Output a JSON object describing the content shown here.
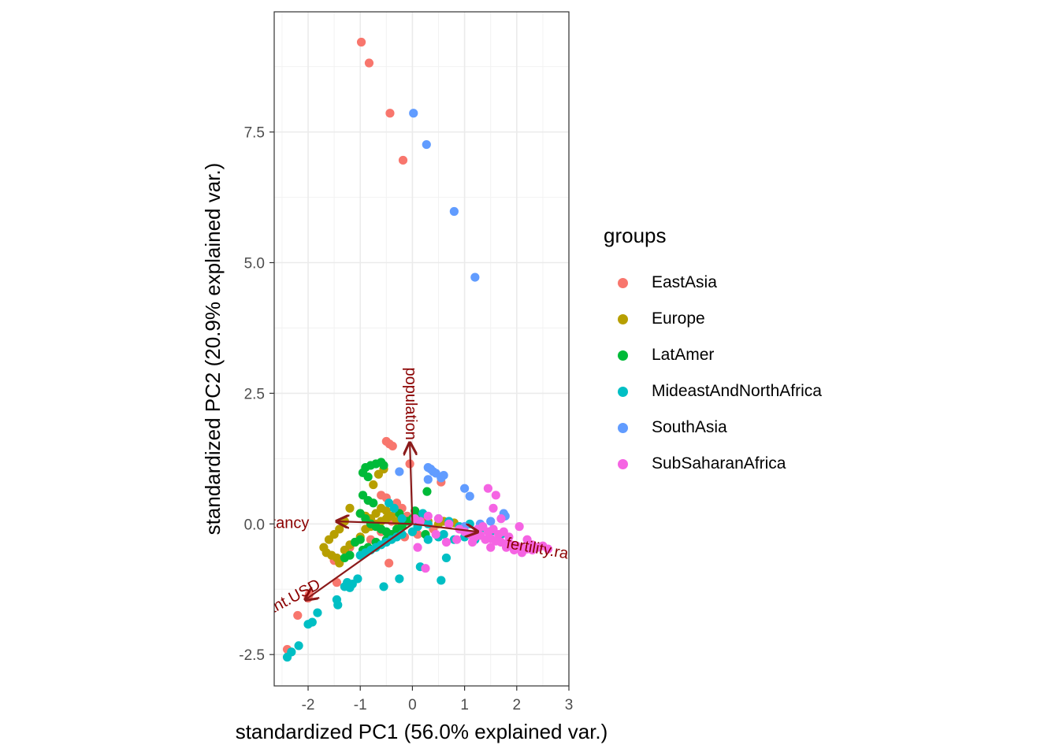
{
  "chart_data": {
    "type": "scatter",
    "title": "",
    "xlabel": "standardized PC1 (56.0% explained var.)",
    "ylabel": "standardized PC2 (20.9% explained var.)",
    "xlim": [
      -2.65,
      3.0
    ],
    "ylim": [
      -3.1,
      9.8
    ],
    "x_ticks": [
      -2,
      -1,
      0,
      1,
      2,
      3
    ],
    "x_tick_labels": [
      "-2",
      "-1",
      "0",
      "1",
      "2",
      "3"
    ],
    "y_ticks": [
      -2.5,
      0.0,
      2.5,
      5.0,
      7.5
    ],
    "y_tick_labels": [
      "-2.5",
      "0.0",
      "2.5",
      "5.0",
      "7.5"
    ],
    "grid": true,
    "legend_title": "groups",
    "legend_position": "right",
    "series": [
      {
        "name": "EastAsia",
        "color": "#F8766D",
        "points": [
          [
            -0.98,
            9.22
          ],
          [
            -0.83,
            8.82
          ],
          [
            -0.43,
            7.86
          ],
          [
            -0.18,
            6.96
          ],
          [
            -0.5,
            1.58
          ],
          [
            -0.44,
            1.53
          ],
          [
            -0.38,
            1.49
          ],
          [
            -0.05,
            1.15
          ],
          [
            -0.6,
            0.55
          ],
          [
            -0.5,
            0.5
          ],
          [
            -0.3,
            0.4
          ],
          [
            -0.2,
            0.3
          ],
          [
            -0.1,
            0.15
          ],
          [
            -0.4,
            0.05
          ],
          [
            -0.6,
            -0.15
          ],
          [
            -0.8,
            -0.3
          ],
          [
            -1.2,
            -0.45
          ],
          [
            -1.5,
            -0.7
          ],
          [
            -0.45,
            -0.75
          ],
          [
            -1.45,
            -1.12
          ],
          [
            -1.98,
            -1.35
          ],
          [
            -2.0,
            -1.42
          ],
          [
            -2.2,
            -1.75
          ],
          [
            -2.4,
            -2.4
          ],
          [
            0.55,
            0.8
          ],
          [
            0.2,
            0.1
          ],
          [
            0.4,
            -0.1
          ],
          [
            0.7,
            0.0
          ],
          [
            0.1,
            -0.2
          ],
          [
            -0.15,
            -0.25
          ]
        ]
      },
      {
        "name": "Europe",
        "color": "#B79F00",
        "points": [
          [
            -0.55,
            1.05
          ],
          [
            -0.65,
            0.95
          ],
          [
            -0.75,
            0.75
          ],
          [
            -1.2,
            0.3
          ],
          [
            -1.0,
            0.2
          ],
          [
            -0.9,
            0.15
          ],
          [
            -0.8,
            0.1
          ],
          [
            -0.7,
            0.2
          ],
          [
            -0.6,
            0.3
          ],
          [
            -0.5,
            0.25
          ],
          [
            -1.3,
            0.05
          ],
          [
            -1.4,
            -0.1
          ],
          [
            -1.5,
            -0.2
          ],
          [
            -1.6,
            -0.3
          ],
          [
            -1.7,
            -0.45
          ],
          [
            -1.65,
            -0.55
          ],
          [
            -1.55,
            -0.6
          ],
          [
            -1.45,
            -0.65
          ],
          [
            -1.4,
            -0.75
          ],
          [
            -1.3,
            -0.5
          ],
          [
            -1.2,
            -0.4
          ],
          [
            -1.1,
            -0.35
          ],
          [
            -1.0,
            -0.25
          ],
          [
            -0.9,
            -0.1
          ],
          [
            -0.8,
            -0.05
          ],
          [
            -0.7,
            0.0
          ],
          [
            -0.6,
            0.05
          ],
          [
            -0.5,
            0.1
          ],
          [
            -0.4,
            0.15
          ],
          [
            -0.3,
            0.05
          ],
          [
            0.3,
            0.05
          ],
          [
            0.5,
            0.0
          ],
          [
            0.6,
            0.05
          ],
          [
            0.8,
            0.02
          ]
        ]
      },
      {
        "name": "LatAmer",
        "color": "#00BA38",
        "points": [
          [
            -0.9,
            1.08
          ],
          [
            -0.8,
            1.12
          ],
          [
            -0.7,
            1.15
          ],
          [
            -0.6,
            1.18
          ],
          [
            -0.55,
            1.12
          ],
          [
            -0.95,
            0.98
          ],
          [
            -0.85,
            0.9
          ],
          [
            -0.95,
            0.55
          ],
          [
            -0.85,
            0.45
          ],
          [
            -0.75,
            0.4
          ],
          [
            0.28,
            0.62
          ],
          [
            -1.0,
            0.2
          ],
          [
            -0.9,
            0.1
          ],
          [
            -0.8,
            0.0
          ],
          [
            -0.7,
            -0.05
          ],
          [
            -0.6,
            -0.1
          ],
          [
            -0.5,
            -0.15
          ],
          [
            -0.4,
            -0.2
          ],
          [
            -0.3,
            -0.1
          ],
          [
            -0.2,
            -0.05
          ],
          [
            -0.1,
            0.05
          ],
          [
            0.0,
            0.1
          ],
          [
            0.1,
            0.15
          ],
          [
            -1.0,
            -0.3
          ],
          [
            -1.1,
            -0.35
          ],
          [
            -0.95,
            -0.5
          ],
          [
            -0.85,
            -0.45
          ],
          [
            -1.2,
            -0.6
          ],
          [
            -1.3,
            -0.65
          ],
          [
            -0.7,
            -0.35
          ],
          [
            -0.5,
            -0.3
          ],
          [
            0.25,
            -0.2
          ],
          [
            -0.25,
            0.2
          ],
          [
            0.05,
            0.25
          ],
          [
            0.15,
            0.05
          ]
        ]
      },
      {
        "name": "MideastAndNorthAfrica",
        "color": "#00BFC4",
        "points": [
          [
            -2.4,
            -2.55
          ],
          [
            -2.32,
            -2.45
          ],
          [
            -2.18,
            -2.33
          ],
          [
            -2.0,
            -1.92
          ],
          [
            -1.92,
            -1.88
          ],
          [
            -1.82,
            -1.7
          ],
          [
            -1.45,
            -1.45
          ],
          [
            -1.43,
            -1.55
          ],
          [
            -1.3,
            -1.2
          ],
          [
            -1.25,
            -1.12
          ],
          [
            -1.2,
            -1.22
          ],
          [
            -1.15,
            -1.15
          ],
          [
            -1.05,
            -1.05
          ],
          [
            -0.55,
            -1.2
          ],
          [
            -0.25,
            -1.05
          ],
          [
            0.55,
            -1.08
          ],
          [
            0.15,
            -0.82
          ],
          [
            0.65,
            -0.65
          ],
          [
            -1.0,
            -0.6
          ],
          [
            -0.9,
            -0.55
          ],
          [
            -0.8,
            -0.5
          ],
          [
            -0.7,
            -0.45
          ],
          [
            -0.6,
            -0.4
          ],
          [
            -0.5,
            -0.35
          ],
          [
            -0.4,
            -0.3
          ],
          [
            -0.3,
            -0.25
          ],
          [
            -0.2,
            -0.2
          ],
          [
            0.0,
            -0.15
          ],
          [
            0.3,
            -0.3
          ],
          [
            0.5,
            -0.25
          ],
          [
            0.6,
            -0.2
          ],
          [
            0.8,
            -0.3
          ],
          [
            1.0,
            -0.25
          ],
          [
            1.2,
            -0.3
          ],
          [
            -0.45,
            0.4
          ],
          [
            -0.35,
            0.3
          ],
          [
            -0.2,
            0.1
          ],
          [
            0.1,
            -0.05
          ],
          [
            0.3,
            0.0
          ],
          [
            0.5,
            0.1
          ],
          [
            0.7,
            0.05
          ],
          [
            0.9,
            -0.05
          ],
          [
            1.1,
            0.0
          ],
          [
            1.3,
            -0.1
          ],
          [
            1.5,
            -0.15
          ],
          [
            1.7,
            -0.2
          ],
          [
            0.2,
            0.2
          ]
        ]
      },
      {
        "name": "SouthAsia",
        "color": "#619CFF",
        "points": [
          [
            0.02,
            7.86
          ],
          [
            0.27,
            7.26
          ],
          [
            0.8,
            5.98
          ],
          [
            1.2,
            4.72
          ],
          [
            -0.25,
            1.0
          ],
          [
            0.3,
            1.08
          ],
          [
            0.35,
            1.05
          ],
          [
            0.4,
            1.0
          ],
          [
            0.45,
            0.97
          ],
          [
            0.6,
            0.93
          ],
          [
            0.55,
            0.88
          ],
          [
            0.3,
            0.85
          ],
          [
            1.0,
            0.68
          ],
          [
            1.1,
            0.53
          ],
          [
            1.75,
            0.2
          ],
          [
            1.78,
            0.15
          ],
          [
            1.5,
            0.05
          ],
          [
            1.3,
            0.0
          ],
          [
            1.0,
            -0.05
          ]
        ]
      },
      {
        "name": "SubSaharanAfrica",
        "color": "#F564E3",
        "points": [
          [
            1.45,
            0.68
          ],
          [
            1.6,
            0.55
          ],
          [
            1.55,
            0.3
          ],
          [
            1.7,
            0.1
          ],
          [
            0.25,
            -0.85
          ],
          [
            0.1,
            -0.45
          ],
          [
            0.3,
            0.15
          ],
          [
            0.5,
            0.1
          ],
          [
            0.7,
            0.0
          ],
          [
            0.9,
            -0.1
          ],
          [
            1.0,
            -0.15
          ],
          [
            1.1,
            -0.2
          ],
          [
            1.2,
            -0.25
          ],
          [
            1.3,
            -0.22
          ],
          [
            1.4,
            -0.3
          ],
          [
            1.5,
            -0.28
          ],
          [
            1.6,
            -0.33
          ],
          [
            1.7,
            -0.35
          ],
          [
            1.8,
            -0.38
          ],
          [
            1.9,
            -0.4
          ],
          [
            2.0,
            -0.42
          ],
          [
            2.1,
            -0.45
          ],
          [
            2.2,
            -0.48
          ],
          [
            2.3,
            -0.5
          ],
          [
            2.4,
            -0.45
          ],
          [
            2.5,
            -0.42
          ],
          [
            2.6,
            -0.48
          ],
          [
            2.2,
            -0.3
          ],
          [
            2.05,
            -0.05
          ],
          [
            2.1,
            -0.55
          ],
          [
            1.95,
            -0.5
          ],
          [
            1.85,
            -0.25
          ],
          [
            1.75,
            -0.15
          ],
          [
            1.65,
            -0.2
          ],
          [
            1.55,
            -0.1
          ],
          [
            1.45,
            -0.15
          ],
          [
            1.35,
            -0.05
          ],
          [
            1.25,
            -0.1
          ],
          [
            1.15,
            -0.35
          ],
          [
            0.85,
            -0.3
          ],
          [
            0.65,
            -0.35
          ],
          [
            0.45,
            -0.2
          ],
          [
            0.15,
            0.05
          ],
          [
            0.05,
            0.1
          ],
          [
            1.5,
            -0.45
          ],
          [
            1.8,
            -0.45
          ],
          [
            2.3,
            -0.4
          ]
        ]
      }
    ],
    "loadings": [
      {
        "label": "population",
        "x": -0.05,
        "y": 1.55
      },
      {
        "label": "life.expectancy",
        "x": -1.45,
        "y": 0.05
      },
      {
        "label": "gdpPercap.constant.USD",
        "x": -2.05,
        "y": -1.45
      },
      {
        "label": "fertility.rate",
        "x": 1.25,
        "y": -0.15
      }
    ]
  }
}
